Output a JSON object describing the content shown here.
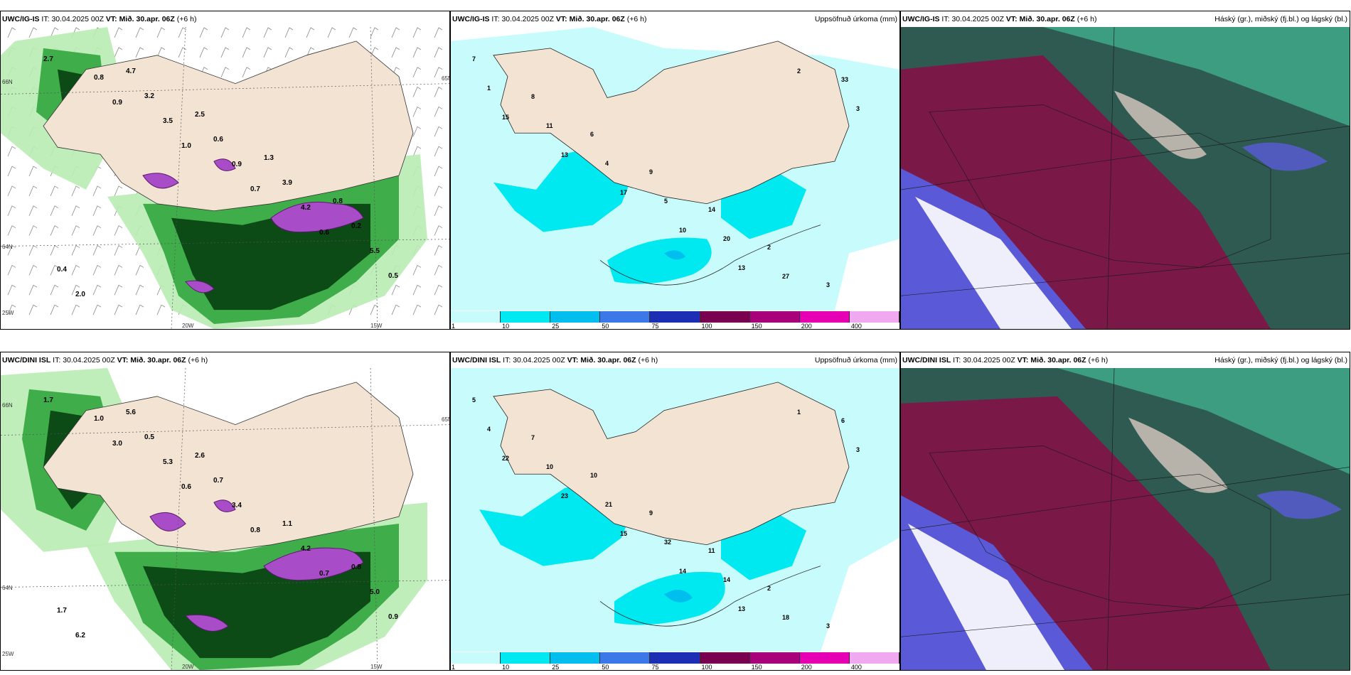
{
  "rows": [
    {
      "model": "UWC/IG-IS",
      "it_label": "IT:",
      "it_value": "30.04.2025 00Z",
      "vt_label": "VT:",
      "vt_value": "Mið. 30.apr. 06Z",
      "lead": "(+6 h)",
      "precip_title": "Uppsöfnuð úrkoma (mm)",
      "cloud_title": "Háský (gr.), miðský (fj.bl.) og lágský (bl.)",
      "grid_labels": {
        "lat_top": "66N",
        "lat_mid": "64N",
        "lon_left": "25W",
        "lon_mid": "20W",
        "lon_right": "15W",
        "lat_right": "65N"
      }
    },
    {
      "model": "UWC/DINI ISL",
      "it_label": "IT:",
      "it_value": "30.04.2025 00Z",
      "vt_label": "VT:",
      "vt_value": "Mið. 30.apr. 06Z",
      "lead": "(+6 h)",
      "precip_title": "Uppsöfnuð úrkoma (mm)",
      "cloud_title": "Háský (gr.), miðský (fj.bl.) og lágský (bl.)",
      "grid_labels": {
        "lat_top": "66N",
        "lat_mid": "64N",
        "lon_left": "25W",
        "lon_mid": "20W",
        "lon_right": "15W",
        "lat_right": "65N"
      }
    }
  ],
  "precip_colorbar": {
    "ticks": [
      "1",
      "10",
      "25",
      "50",
      "75",
      "100",
      "150",
      "200",
      "400"
    ],
    "colors": [
      "#c8fcfc",
      "#00e8f0",
      "#00bfee",
      "#3c78e8",
      "#1e2eb4",
      "#7a0050",
      "#a8007a",
      "#e600b4",
      "#f0a8f0"
    ]
  },
  "wind_panel_values": {
    "top": [
      "2.7",
      "0.9",
      "1.0",
      "0.7",
      "0.6",
      "0.5",
      "0.8",
      "3.5",
      "0.9",
      "4.2",
      "5.5",
      "2.0",
      "3.2",
      "0.6",
      "3.9",
      "0.2",
      "0.4",
      "4.7",
      "2.5",
      "1.3",
      "0.8"
    ],
    "bottom": [
      "1.7",
      "3.0",
      "0.6",
      "0.8",
      "0.7",
      "0.9",
      "1.0",
      "5.3",
      "3.4",
      "4.2",
      "5.0",
      "6.2",
      "0.5",
      "0.7",
      "1.1",
      "0.8",
      "1.7",
      "5.6",
      "2.6"
    ]
  },
  "precip_panel_values": {
    "top": [
      "7",
      "8",
      "6",
      "9",
      "14",
      "2",
      "3",
      "1",
      "11",
      "4",
      "5",
      "20",
      "27",
      "33",
      "15",
      "13",
      "17",
      "10",
      "13",
      "2",
      "3"
    ],
    "bottom": [
      "5",
      "7",
      "10",
      "9",
      "11",
      "2",
      "3",
      "4",
      "10",
      "21",
      "32",
      "14",
      "18",
      "6",
      "22",
      "23",
      "15",
      "14",
      "13",
      "1",
      "3"
    ]
  },
  "colors": {
    "land": "#f2e3d3",
    "sea_precip": "#c8fcfc",
    "green_light": "#b9ecb4",
    "green_mid": "#3fae4a",
    "green_dark": "#0c4a16",
    "purple": "#a84cc8",
    "cloud_high": "#3ea98a",
    "cloud_mid": "#7a1848",
    "cloud_low": "#5a5ad8",
    "cloud_bg": "#2f5a52"
  }
}
